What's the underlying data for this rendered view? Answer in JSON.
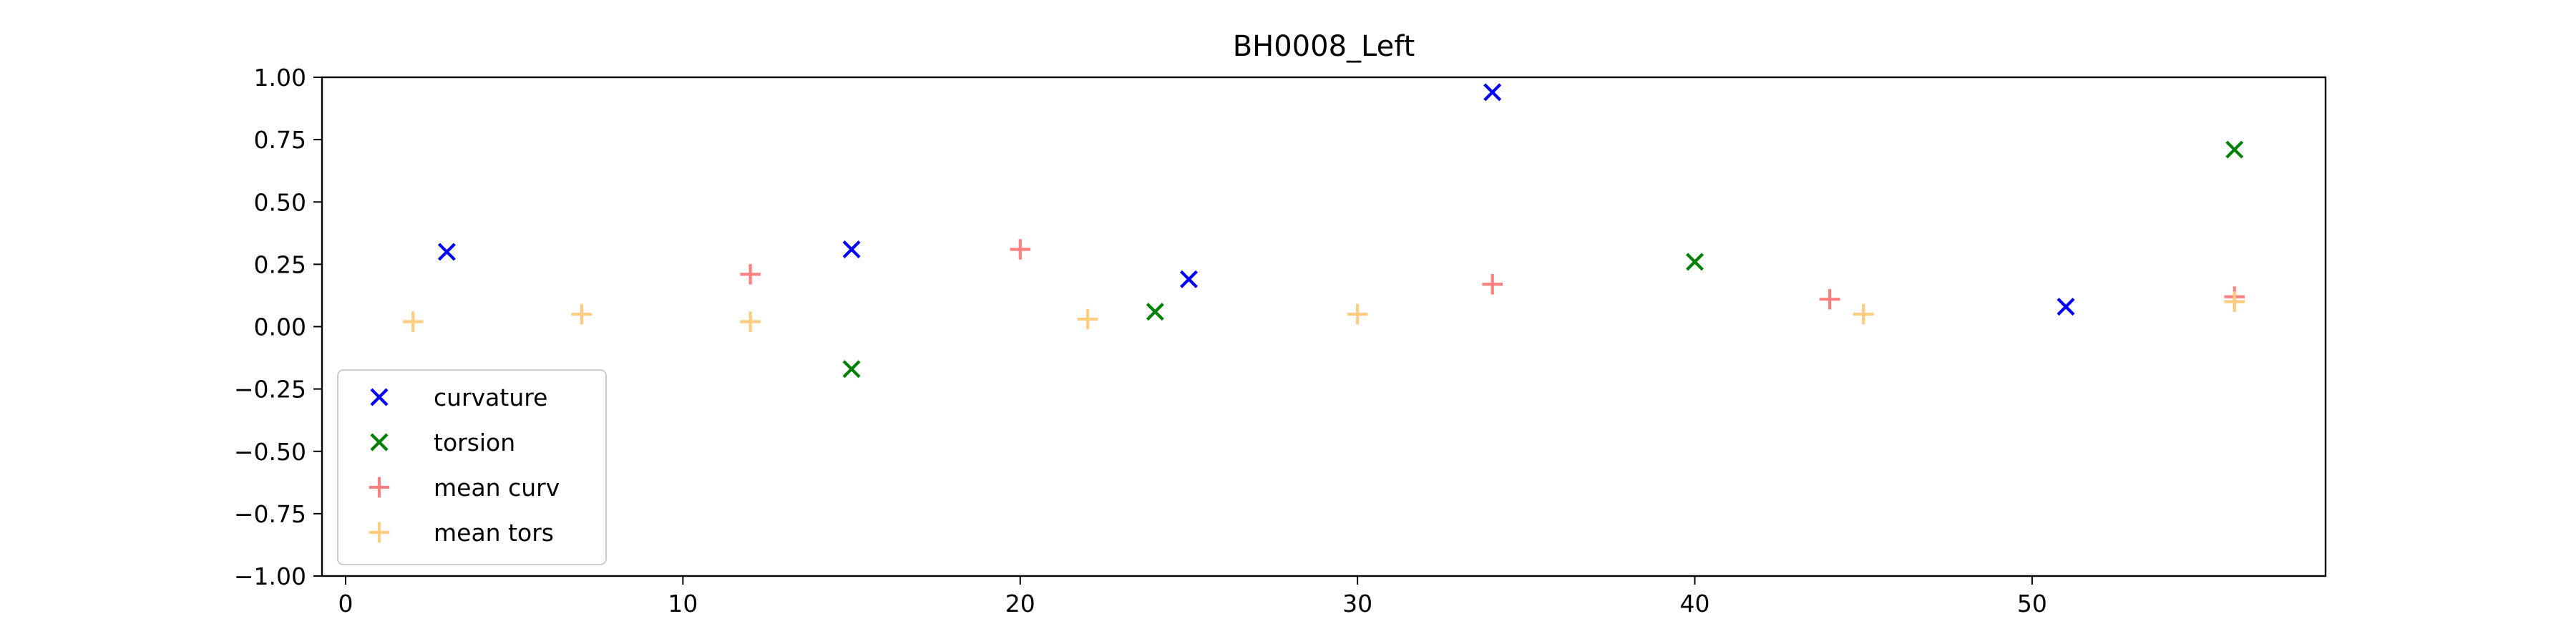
{
  "chart_data": {
    "type": "scatter",
    "title": "BH0008_Left",
    "xlabel": "",
    "ylabel": "",
    "xlim": [
      -0.7,
      58.7
    ],
    "ylim": [
      -1.0,
      1.0
    ],
    "x_ticks": [
      0,
      10,
      20,
      30,
      40,
      50
    ],
    "x_tick_labels": [
      "0",
      "10",
      "20",
      "30",
      "40",
      "50"
    ],
    "y_ticks": [
      1.0,
      0.75,
      0.5,
      0.25,
      0.0,
      -0.25,
      -0.5,
      -0.75,
      -1.0
    ],
    "y_tick_labels": [
      "1.00",
      "0.75",
      "0.50",
      "0.25",
      "0.00",
      "−0.25",
      "−0.50",
      "−0.75",
      "−1.00"
    ],
    "grid": false,
    "legend_position": "lower-left",
    "series": [
      {
        "name": "curvature",
        "marker": "x",
        "color": "#0000ff",
        "points": [
          [
            3,
            0.3
          ],
          [
            15,
            0.31
          ],
          [
            25,
            0.19
          ],
          [
            34,
            0.94
          ],
          [
            51,
            0.08
          ]
        ]
      },
      {
        "name": "torsion",
        "marker": "x",
        "color": "#008000",
        "points": [
          [
            15,
            -0.17
          ],
          [
            24,
            0.06
          ],
          [
            40,
            0.26
          ],
          [
            56,
            0.71
          ]
        ]
      },
      {
        "name": "mean curv",
        "marker": "+",
        "color": "#ff8080",
        "points": [
          [
            12,
            0.21
          ],
          [
            20,
            0.31
          ],
          [
            34,
            0.17
          ],
          [
            44,
            0.11
          ],
          [
            56,
            0.12
          ]
        ]
      },
      {
        "name": "mean tors",
        "marker": "+",
        "color": "#ffcc80",
        "points": [
          [
            2,
            0.02
          ],
          [
            7,
            0.05
          ],
          [
            12,
            0.02
          ],
          [
            22,
            0.03
          ],
          [
            30,
            0.05
          ],
          [
            45,
            0.05
          ],
          [
            56,
            0.1
          ]
        ]
      }
    ]
  }
}
